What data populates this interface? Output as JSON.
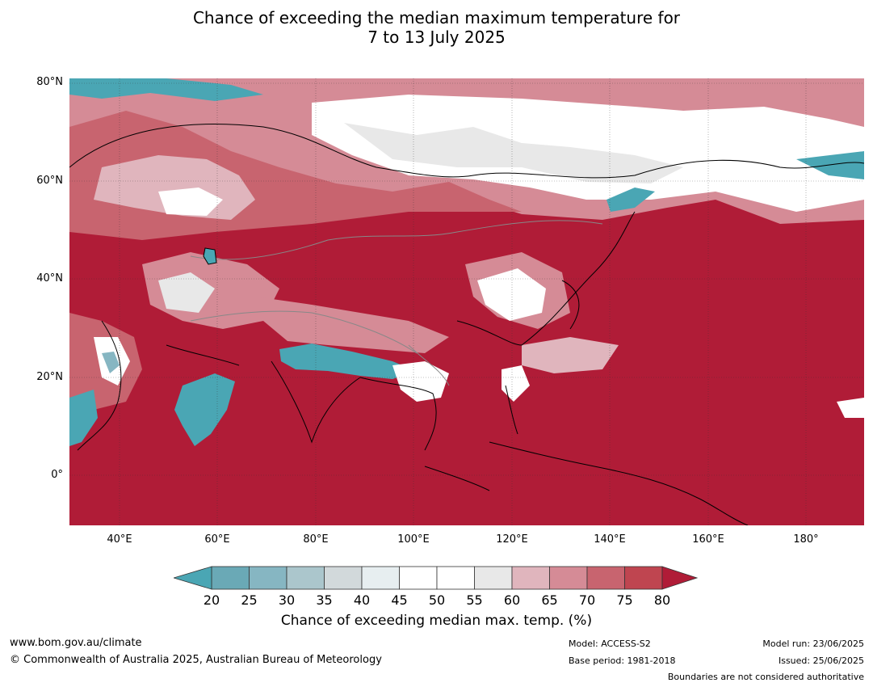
{
  "title": {
    "line1": "Chance of exceeding the median maximum temperature for",
    "line2": "7 to 13 July 2025"
  },
  "axes": {
    "lat_labels": [
      "80°N",
      "60°N",
      "40°N",
      "20°N",
      "0°"
    ],
    "lon_labels": [
      "40°E",
      "60°E",
      "80°E",
      "100°E",
      "120°E",
      "140°E",
      "160°E",
      "180°"
    ]
  },
  "legend": {
    "ticks": [
      "20",
      "25",
      "30",
      "35",
      "40",
      "45",
      "50",
      "55",
      "60",
      "65",
      "70",
      "75",
      "80"
    ],
    "colors": [
      "#6aa9b6",
      "#86b6c2",
      "#abc6cc",
      "#d2d9db",
      "#e7eef0",
      "#ffffff",
      "#ffffff",
      "#e8e8e8",
      "#e0b5bd",
      "#d58b96",
      "#c8646f",
      "#bf4550"
    ],
    "low_extend_color": "#4aa6b4",
    "high_extend_color": "#b01c37",
    "title": "Chance of exceeding median max. temp. (%)"
  },
  "map_colors": {
    "deep_red": "#b01c37",
    "red": "#bf4550",
    "mid_red": "#c8646f",
    "pink": "#d58b96",
    "light_pink": "#e0b5bd",
    "white": "#ffffff",
    "light_grey": "#e8e8e8",
    "teal": "#4aa6b4",
    "light_teal": "#86b6c2"
  },
  "footer": {
    "website": "www.bom.gov.au/climate",
    "copyright": "© Commonwealth of Australia 2025, Australian Bureau of Meteorology",
    "model": "Model: ACCESS-S2",
    "base_period": "Base period: 1981-2018",
    "model_run": "Model run: 23/06/2025",
    "issued": "Issued: 25/06/2025",
    "disclaimer": "Boundaries are not considered authoritative"
  }
}
